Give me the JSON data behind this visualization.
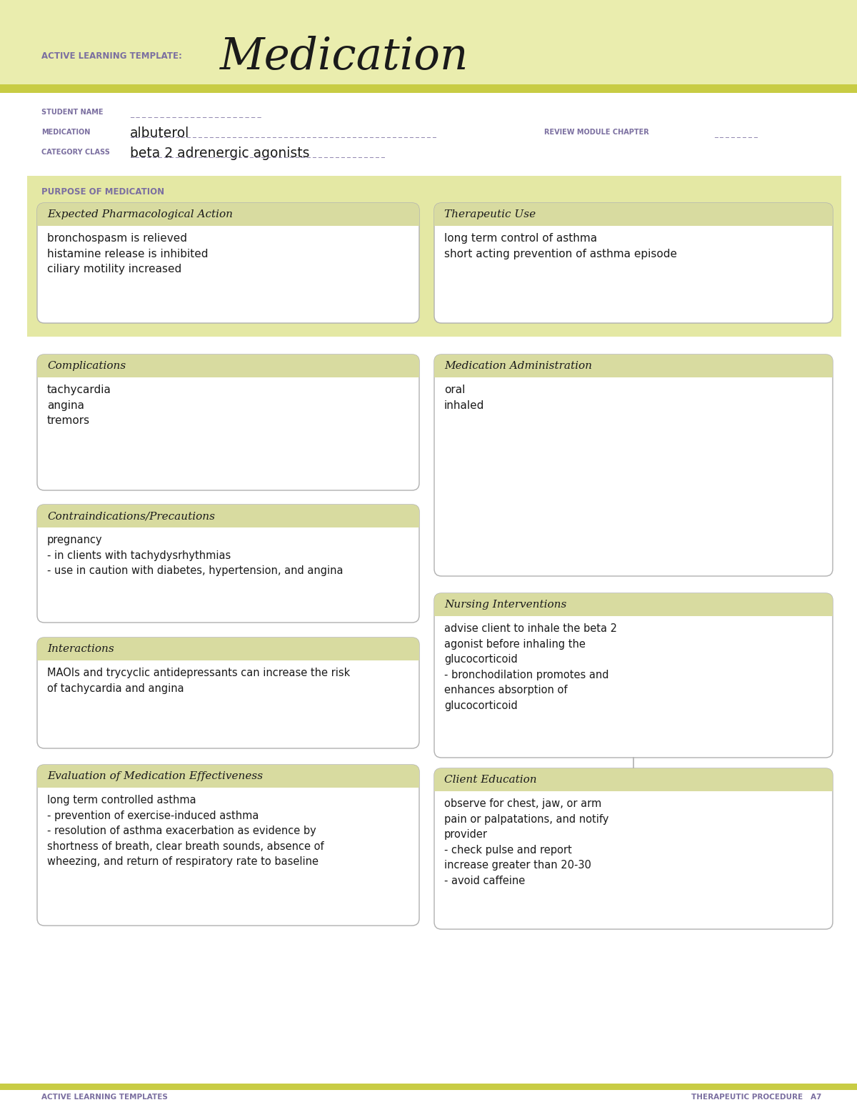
{
  "white": "#ffffff",
  "header_bg": "#eaedae",
  "olive_line": "#c8cc44",
  "purple_label": "#7b6fa0",
  "dark_text": "#1a1a1a",
  "box_border": "#b0b0b0",
  "box_header_bg": "#d8dba0",
  "title_template": "ACTIVE LEARNING TEMPLATE:",
  "title_main": "Medication",
  "student_name_label": "STUDENT NAME",
  "medication_label": "MEDICATION",
  "medication_value": "albuterol",
  "review_label": "REVIEW MODULE CHAPTER",
  "category_label": "CATEGORY CLASS",
  "category_value": "beta 2 adrenergic agonists",
  "purpose_header": "PURPOSE OF MEDICATION",
  "box1_title": "Expected Pharmacological Action",
  "box1_content": "bronchospasm is relieved\nhistamine release is inhibited\nciliary motility increased",
  "box2_title": "Therapeutic Use",
  "box2_content": "long term control of asthma\nshort acting prevention of asthma episode",
  "box3_title": "Complications",
  "box3_content": "tachycardia\nangina\ntremors",
  "box4_title": "Medication Administration",
  "box4_content": "oral\ninhaled",
  "box5_title": "Contraindications/Precautions",
  "box5_content": "pregnancy\n- in clients with tachydysrhythmias\n- use in caution with diabetes, hypertension, and angina",
  "box6_title": "Nursing Interventions",
  "box6_content": "advise client to inhale the beta 2\nagonist before inhaling the\nglucocorticoid\n- bronchodilation promotes and\nenhances absorption of\nglucocorticoid",
  "box7_title": "Interactions",
  "box7_content": "MAOIs and trycyclic antidepressants can increase the risk\nof tachycardia and angina",
  "box8_title": "Client Education",
  "box8_content": "observe for chest, jaw, or arm\npain or palpatations, and notify\nprovider\n- check pulse and report\nincrease greater than 20-30\n- avoid caffeine",
  "box9_title": "Evaluation of Medication Effectiveness",
  "box9_content": "long term controlled asthma\n- prevention of exercise-induced asthma\n- resolution of asthma exacerbation as evidence by\nshortness of breath, clear breath sounds, absence of\nwheezing, and return of respiratory rate to baseline",
  "footer_left": "ACTIVE LEARNING TEMPLATES",
  "footer_right": "THERAPEUTIC PROCEDURE   A7"
}
